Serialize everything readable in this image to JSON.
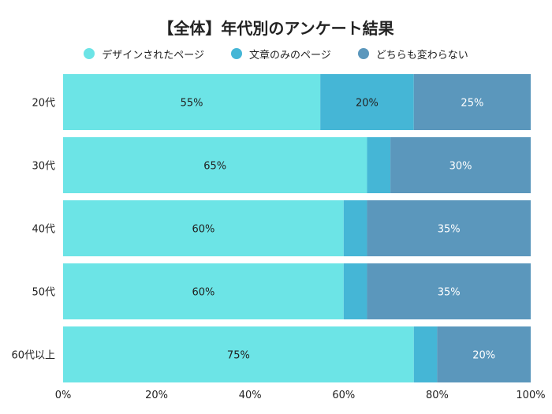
{
  "chart_data": {
    "type": "bar",
    "orientation": "horizontal",
    "stacked": true,
    "title": "【全体】年代別のアンケート結果",
    "categories": [
      "20代",
      "30代",
      "40代",
      "50代",
      "60代以上"
    ],
    "series": [
      {
        "name": "デザインされたページ",
        "color": "#6ce4e6",
        "values": [
          55,
          65,
          60,
          60,
          75
        ],
        "labels": [
          "55%",
          "65%",
          "60%",
          "60%",
          "75%"
        ]
      },
      {
        "name": "文章のみのページ",
        "color": "#45b6d6",
        "values": [
          20,
          5,
          5,
          5,
          5
        ],
        "labels": [
          "20%",
          "",
          "",
          "",
          ""
        ]
      },
      {
        "name": "どちらも変わらない",
        "color": "#5b97bc",
        "values": [
          25,
          30,
          35,
          35,
          20
        ],
        "labels": [
          "25%",
          "30%",
          "35%",
          "35%",
          "20%"
        ]
      }
    ],
    "xlim": [
      0,
      100
    ],
    "xticks": [
      "0%",
      "20%",
      "40%",
      "60%",
      "80%",
      "100%"
    ],
    "legend_position": "top",
    "grid": false
  }
}
